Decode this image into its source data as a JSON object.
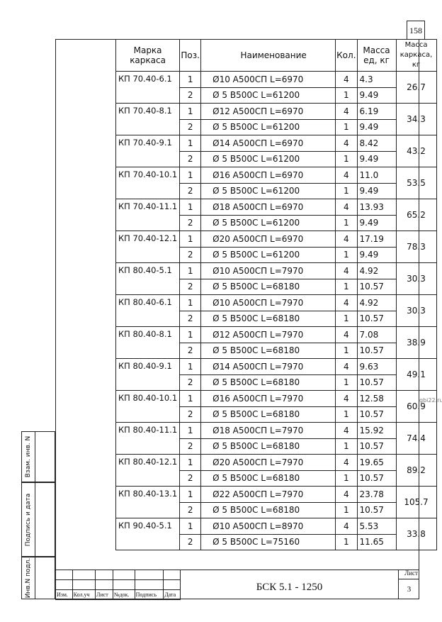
{
  "page_number": "158",
  "watermark": "gbi22.ru",
  "table": {
    "headers": [
      "Марка каркаса",
      "Поз.",
      "Наименование",
      "Кол.",
      "Масса ед, кг",
      "Масса каркаса, кг"
    ],
    "groups": [
      {
        "mark": "КП 70.40-6.1",
        "total": "26.7",
        "rows": [
          [
            "1",
            "Ø10 А500СП  L=6970",
            "4",
            "4.3"
          ],
          [
            "2",
            "Ø 5 В500С   L=61200",
            "1",
            "9.49"
          ]
        ]
      },
      {
        "mark": "КП 70.40-8.1",
        "total": "34.3",
        "rows": [
          [
            "1",
            "Ø12 А500СП  L=6970",
            "4",
            "6.19"
          ],
          [
            "2",
            "Ø 5 В500С   L=61200",
            "1",
            "9.49"
          ]
        ]
      },
      {
        "mark": "КП 70.40-9.1",
        "total": "43.2",
        "rows": [
          [
            "1",
            "Ø14 А500СП  L=6970",
            "4",
            "8.42"
          ],
          [
            "2",
            "Ø 5 В500С   L=61200",
            "1",
            "9.49"
          ]
        ]
      },
      {
        "mark": "КП 70.40-10.1",
        "total": "53.5",
        "rows": [
          [
            "1",
            "Ø16 А500СП  L=6970",
            "4",
            "11.0"
          ],
          [
            "2",
            "Ø 5 В500С   L=61200",
            "1",
            "9.49"
          ]
        ]
      },
      {
        "mark": "КП 70.40-11.1",
        "total": "65.2",
        "rows": [
          [
            "1",
            "Ø18 А500СП  L=6970",
            "4",
            "13.93"
          ],
          [
            "2",
            "Ø 5 В500С   L=61200",
            "1",
            "9.49"
          ]
        ]
      },
      {
        "mark": "КП 70.40-12.1",
        "total": "78.3",
        "rows": [
          [
            "1",
            "Ø20 А500СП  L=6970",
            "4",
            "17.19"
          ],
          [
            "2",
            "Ø 5 В500С   L=61200",
            "1",
            "9.49"
          ]
        ]
      },
      {
        "mark": "КП 80.40-5.1",
        "total": "30.3",
        "rows": [
          [
            "1",
            "Ø10 А500СП  L=7970",
            "4",
            "4.92"
          ],
          [
            "2",
            "Ø 5 В500С   L=68180",
            "1",
            "10.57"
          ]
        ]
      },
      {
        "mark": "КП 80.40-6.1",
        "total": "30.3",
        "rows": [
          [
            "1",
            "Ø10 А500СП  L=7970",
            "4",
            "4.92"
          ],
          [
            "2",
            "Ø 5 В500С   L=68180",
            "1",
            "10.57"
          ]
        ]
      },
      {
        "mark": "КП 80.40-8.1",
        "total": "38.9",
        "rows": [
          [
            "1",
            "Ø12 А500СП  L=7970",
            "4",
            "7.08"
          ],
          [
            "2",
            "Ø 5 В500С   L=68180",
            "1",
            "10.57"
          ]
        ]
      },
      {
        "mark": "КП 80.40-9.1",
        "total": "49.1",
        "rows": [
          [
            "1",
            "Ø14 А500СП  L=7970",
            "4",
            "9.63"
          ],
          [
            "2",
            "Ø 5 В500С   L=68180",
            "1",
            "10.57"
          ]
        ]
      },
      {
        "mark": "КП 80.40-10.1",
        "total": "60.9",
        "rows": [
          [
            "1",
            "Ø16 А500СП  L=7970",
            "4",
            "12.58"
          ],
          [
            "2",
            "Ø 5 В500С   L=68180",
            "1",
            "10.57"
          ]
        ]
      },
      {
        "mark": "КП 80.40-11.1",
        "total": "74.4",
        "rows": [
          [
            "1",
            "Ø18 А500СП  L=7970",
            "4",
            "15.92"
          ],
          [
            "2",
            "Ø 5 В500С   L=68180",
            "1",
            "10.57"
          ]
        ]
      },
      {
        "mark": "КП 80.40-12.1",
        "total": "89.2",
        "rows": [
          [
            "1",
            "Ø20 А500СП  L=7970",
            "4",
            "19.65"
          ],
          [
            "2",
            "Ø 5 В500С   L=68180",
            "1",
            "10.57"
          ]
        ]
      },
      {
        "mark": "КП 80.40-13.1",
        "total": "105.7",
        "rows": [
          [
            "1",
            "Ø22 А500СП  L=7970",
            "4",
            "23.78"
          ],
          [
            "2",
            "Ø 5 В500С   L=68180",
            "1",
            "10.57"
          ]
        ]
      },
      {
        "mark": "КП 90.40-5.1",
        "total": "33.8",
        "rows": [
          [
            "1",
            "Ø10 А500СП  L=8970",
            "4",
            "5.53"
          ],
          [
            "2",
            "Ø 5 В500С   L=75160",
            "1",
            "11.65"
          ]
        ]
      }
    ]
  },
  "side_stamp": {
    "inv_podl": "Инв.N подл.",
    "podpis_data": "Подпись и дата",
    "vzam_inv": "Взам. инв. N"
  },
  "title_block": {
    "columns": [
      "Изм.",
      "Кол.уч",
      "Лист",
      "№док.",
      "Подпись",
      "Дата"
    ],
    "code": "БСК 5.1 - 1250",
    "sheet_label": "Лист",
    "sheet_number": "3"
  }
}
